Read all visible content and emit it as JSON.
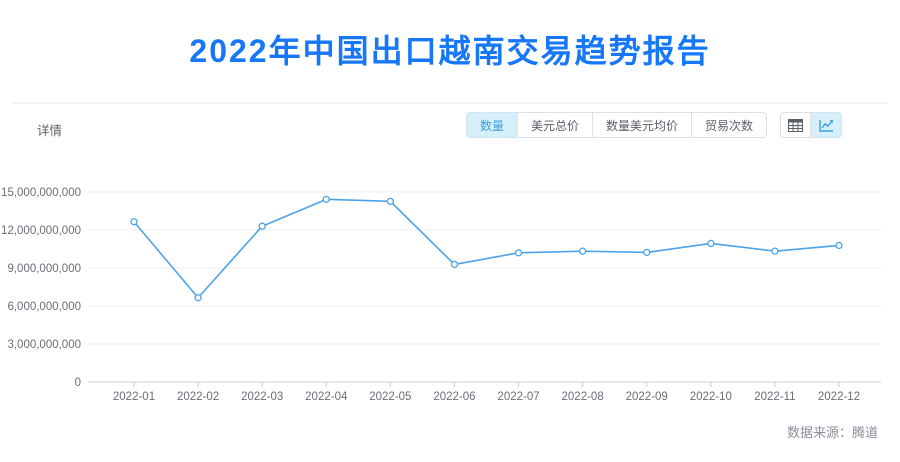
{
  "page": {
    "title": "2022年中国出口越南交易趋势报告",
    "title_color": "#1677f8",
    "section_label": "详情",
    "source_label": "数据来源：腾道"
  },
  "toolbar": {
    "metric_tabs": [
      {
        "label": "数量",
        "selected": true
      },
      {
        "label": "美元总价",
        "selected": false
      },
      {
        "label": "数量美元均价",
        "selected": false
      },
      {
        "label": "贸易次数",
        "selected": false
      }
    ],
    "view_toggles": [
      {
        "icon": "table-icon",
        "selected": false
      },
      {
        "icon": "line-chart-icon",
        "selected": true
      }
    ],
    "selected_bg": "#d7eefb",
    "selected_text": "#3aa2dc"
  },
  "chart_data": {
    "type": "line",
    "title": "",
    "xlabel": "",
    "ylabel": "",
    "legend": "none",
    "grid": true,
    "x": [
      "2022-01",
      "2022-02",
      "2022-03",
      "2022-04",
      "2022-05",
      "2022-06",
      "2022-07",
      "2022-08",
      "2022-09",
      "2022-10",
      "2022-11",
      "2022-12"
    ],
    "series": [
      {
        "name": "数量",
        "values": [
          12650000000,
          6650000000,
          12300000000,
          14420000000,
          14260000000,
          9280000000,
          10200000000,
          10330000000,
          10230000000,
          10940000000,
          10330000000,
          10780000000
        ]
      }
    ],
    "ylim": [
      0,
      15000000000
    ],
    "ytick_step": 3000000000,
    "line_color": "#4da3e8",
    "point_fill": "#ffffff",
    "grid_color": "#eef1f5",
    "axis_color": "#c9ccd3",
    "tick_label_color": "#6b6d76"
  }
}
